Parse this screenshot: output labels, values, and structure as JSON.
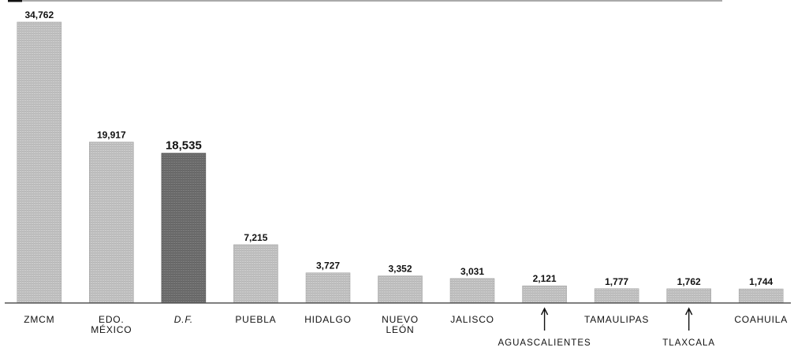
{
  "chart_data": {
    "type": "bar",
    "categories": [
      "ZMCM",
      "EDO. MÉXICO",
      "D.F.",
      "PUEBLA",
      "HIDALGO",
      "NUEVO LEÓN",
      "JALISCO",
      "AGUASCALIENTES",
      "TAMAULIPAS",
      "TLAXCALA",
      "COAHUILA"
    ],
    "category_lines": [
      [
        "ZMCM"
      ],
      [
        "EDO.",
        "MÉXICO"
      ],
      [
        "D.F."
      ],
      [
        "PUEBLA"
      ],
      [
        "HIDALGO"
      ],
      [
        "NUEVO",
        "LEÓN"
      ],
      [
        "JALISCO"
      ],
      [
        "AGUASCALIENTES"
      ],
      [
        "TAMAULIPAS"
      ],
      [
        "TLAXCALA"
      ],
      [
        "COAHUILA"
      ]
    ],
    "values": [
      34762,
      19917,
      18535,
      7215,
      3727,
      3352,
      3031,
      2121,
      1777,
      1762,
      1744
    ],
    "value_labels": [
      "34,762",
      "19,917",
      "18,535",
      "7,215",
      "3,727",
      "3,352",
      "3,031",
      "2,121",
      "1,777",
      "1,762",
      "1,744"
    ],
    "highlighted_category": "D.F.",
    "arrow_annotated_categories": [
      "AGUASCALIENTES",
      "TLAXCALA"
    ],
    "title": "",
    "xlabel": "",
    "ylabel": "",
    "ylim": [
      0,
      34762
    ],
    "grid": false,
    "legend": "none",
    "colors": {
      "bar": "#c4c4c4",
      "bar_highlight": "#6e6e6e",
      "axis": "#555555",
      "text": "#111111"
    }
  }
}
